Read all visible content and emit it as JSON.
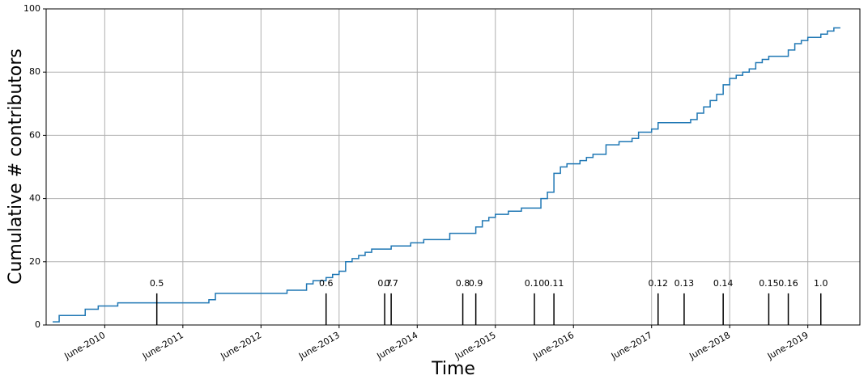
{
  "chart_data": {
    "type": "step",
    "xlabel": "Time",
    "ylabel": "Cumulative # contributors",
    "xlim": [
      "2009-09",
      "2020-02"
    ],
    "xticks": [
      {
        "value": "2010-06",
        "label": "June-2010"
      },
      {
        "value": "2011-06",
        "label": "June-2011"
      },
      {
        "value": "2012-06",
        "label": "June-2012"
      },
      {
        "value": "2013-06",
        "label": "June-2013"
      },
      {
        "value": "2014-06",
        "label": "June-2014"
      },
      {
        "value": "2015-06",
        "label": "June-2015"
      },
      {
        "value": "2016-06",
        "label": "June-2016"
      },
      {
        "value": "2017-06",
        "label": "June-2017"
      },
      {
        "value": "2018-06",
        "label": "June-2018"
      },
      {
        "value": "2019-06",
        "label": "June-2019"
      }
    ],
    "ylim": [
      0,
      100
    ],
    "yticks": [
      0,
      20,
      40,
      60,
      80,
      100
    ],
    "grid": true,
    "series": [
      {
        "color": "#1f77b4",
        "x": [
          "2009-10",
          "2009-11",
          "2010-03",
          "2010-05",
          "2010-08",
          "2011-10",
          "2011-11",
          "2012-10",
          "2013-01",
          "2013-02",
          "2013-04",
          "2013-05",
          "2013-06",
          "2013-07",
          "2013-08",
          "2013-09",
          "2013-10",
          "2013-11",
          "2014-02",
          "2014-05",
          "2014-07",
          "2014-11",
          "2015-03",
          "2015-04",
          "2015-05",
          "2015-06",
          "2015-08",
          "2015-10",
          "2016-01",
          "2016-02",
          "2016-03",
          "2016-04",
          "2016-05",
          "2016-07",
          "2016-08",
          "2016-09",
          "2016-11",
          "2017-01",
          "2017-03",
          "2017-04",
          "2017-06",
          "2017-07",
          "2017-12",
          "2018-01",
          "2018-02",
          "2018-03",
          "2018-04",
          "2018-05",
          "2018-06",
          "2018-07",
          "2018-08",
          "2018-09",
          "2018-10",
          "2018-11",
          "2018-12",
          "2019-03",
          "2019-04",
          "2019-05",
          "2019-06",
          "2019-08",
          "2019-09",
          "2019-10",
          "2019-11"
        ],
        "values": [
          1,
          3,
          5,
          6,
          7,
          8,
          10,
          11,
          13,
          14,
          15,
          16,
          17,
          20,
          21,
          22,
          23,
          24,
          25,
          26,
          27,
          29,
          31,
          33,
          34,
          35,
          36,
          37,
          40,
          42,
          48,
          50,
          51,
          52,
          53,
          54,
          57,
          58,
          59,
          61,
          62,
          64,
          65,
          67,
          69,
          71,
          73,
          76,
          78,
          79,
          80,
          81,
          83,
          84,
          85,
          87,
          89,
          90,
          91,
          92,
          93,
          94,
          94
        ]
      }
    ],
    "releases": {
      "height": 10,
      "x": [
        "2011-02",
        "2013-04",
        "2014-01",
        "2014-02",
        "2015-01",
        "2015-03",
        "2015-12",
        "2016-03",
        "2017-07",
        "2017-11",
        "2018-05",
        "2018-12",
        "2019-03",
        "2019-08"
      ],
      "labels": [
        "0.5",
        "0.6",
        "0.7",
        "0.7",
        "0.8",
        "0.9",
        "0.10",
        "0.11",
        "0.12",
        "0.13",
        "0.14",
        "0.15",
        "0.16",
        "1.0"
      ]
    }
  }
}
